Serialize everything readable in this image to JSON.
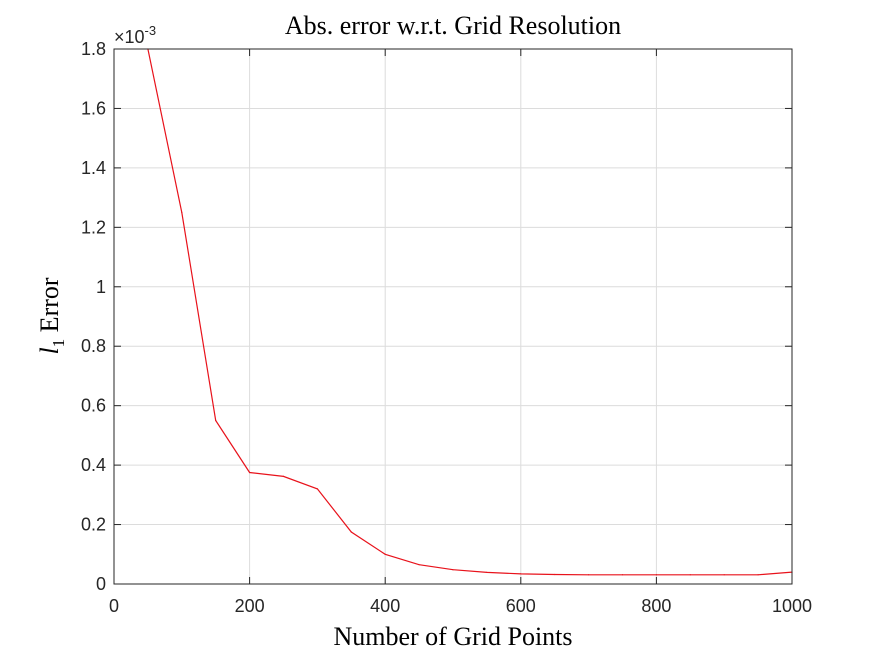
{
  "chart_data": {
    "type": "line",
    "title": "Abs. error w.r.t. Grid Resolution",
    "xlabel": "Number of Grid Points",
    "ylabel": {
      "base": "l",
      "subscript": "1",
      "rest": " Error"
    },
    "y_exponent": {
      "base": "×10",
      "power": "-3"
    },
    "xlim": [
      0,
      1000
    ],
    "ylim": [
      0,
      1.8
    ],
    "xticks": [
      0,
      200,
      400,
      600,
      800,
      1000
    ],
    "xtick_labels": [
      "0",
      "200",
      "400",
      "600",
      "800",
      "1000"
    ],
    "yticks": [
      0,
      0.2,
      0.4,
      0.6,
      0.8,
      1,
      1.2,
      1.4,
      1.6,
      1.8
    ],
    "ytick_labels": [
      "0",
      "0.2",
      "0.4",
      "0.6",
      "0.8",
      "1",
      "1.2",
      "1.4",
      "1.6",
      "1.8"
    ],
    "grid": true,
    "series": [
      {
        "color": "#e8121b",
        "x": [
          50,
          100,
          150,
          200,
          250,
          300,
          350,
          400,
          450,
          500,
          550,
          600,
          650,
          700,
          750,
          800,
          850,
          900,
          950,
          1000
        ],
        "y": [
          1.8,
          1.25,
          0.55,
          0.375,
          0.362,
          0.32,
          0.175,
          0.1,
          0.065,
          0.048,
          0.039,
          0.034,
          0.032,
          0.031,
          0.031,
          0.031,
          0.031,
          0.031,
          0.031,
          0.04
        ]
      }
    ]
  }
}
